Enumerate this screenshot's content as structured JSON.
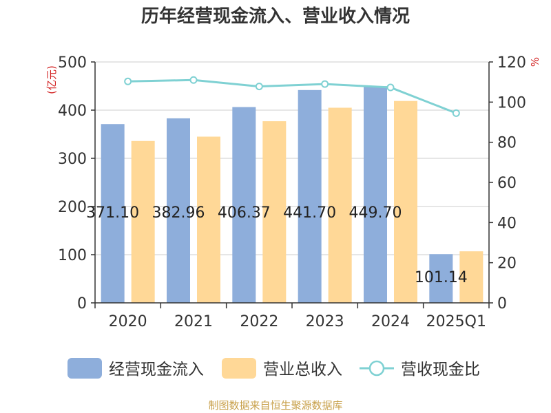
{
  "chart_data": {
    "type": "bar",
    "title": "历年经营现金流入、营业收入情况",
    "categories": [
      "2020",
      "2021",
      "2022",
      "2023",
      "2024",
      "2025Q1"
    ],
    "series": [
      {
        "name": "经营现金流入",
        "type": "bar",
        "axis": "left",
        "values": [
          371.1,
          382.96,
          406.37,
          441.7,
          449.7,
          101.14
        ],
        "data_labels": [
          "371.10",
          "382.96",
          "406.37",
          "441.70",
          "449.70",
          "101.14"
        ]
      },
      {
        "name": "营业总收入",
        "type": "bar",
        "axis": "left",
        "values": [
          336,
          345,
          377,
          405,
          419,
          107
        ]
      },
      {
        "name": "营收现金比",
        "type": "line",
        "axis": "right",
        "values": [
          110.3,
          111.0,
          107.8,
          109.0,
          107.3,
          94.5
        ]
      }
    ],
    "y_left": {
      "unit": "(亿元)",
      "ylim": [
        0,
        500
      ],
      "ticks": [
        "0",
        "100",
        "200",
        "300",
        "400",
        "500"
      ]
    },
    "y_right": {
      "unit": "%",
      "ylim": [
        0,
        120
      ],
      "ticks": [
        "0",
        "20",
        "40",
        "60",
        "80",
        "100",
        "120"
      ]
    },
    "grid": true,
    "legend_position": "bottom",
    "colors": {
      "series1": "#8eaedb",
      "series2": "#ffd897",
      "line": "#7fd1d3",
      "unit": "#d22020",
      "source": "#c8a04a"
    },
    "source": "制图数据来自恒生聚源数据库"
  }
}
